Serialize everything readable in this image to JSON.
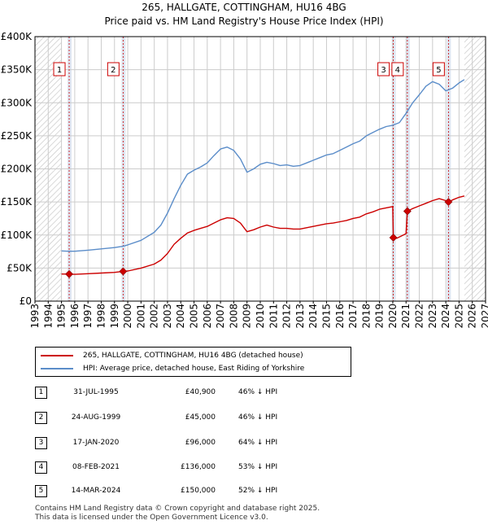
{
  "title_line1": "265, HALLGATE, COTTINGHAM, HU16 4BG",
  "title_line2": "Price paid vs. HM Land Registry's House Price Index (HPI)",
  "chart_data": {
    "type": "line",
    "xlim": [
      1993,
      2027
    ],
    "ylim": [
      0,
      400000
    ],
    "x_ticks": [
      "1993",
      "1994",
      "1995",
      "1996",
      "1997",
      "1998",
      "1999",
      "2000",
      "2001",
      "2002",
      "2003",
      "2004",
      "2005",
      "2006",
      "2007",
      "2008",
      "2009",
      "2010",
      "2011",
      "2012",
      "2013",
      "2014",
      "2015",
      "2016",
      "2017",
      "2018",
      "2019",
      "2020",
      "2021",
      "2022",
      "2023",
      "2024",
      "2025",
      "2026",
      "2027"
    ],
    "y_ticks": [
      {
        "value": 0,
        "label": "£0"
      },
      {
        "value": 50000,
        "label": "£50K"
      },
      {
        "value": 100000,
        "label": "£100K"
      },
      {
        "value": 150000,
        "label": "£150K"
      },
      {
        "value": 200000,
        "label": "£200K"
      },
      {
        "value": 250000,
        "label": "£250K"
      },
      {
        "value": 300000,
        "label": "£300K"
      },
      {
        "value": 350000,
        "label": "£350K"
      },
      {
        "value": 400000,
        "label": "£400K"
      }
    ],
    "data_range": [
      1995.0,
      2025.4
    ],
    "series": [
      {
        "name": "265, HALLGATE, COTTINGHAM, HU16 4BG (detached house)",
        "color": "#cc0000",
        "points": [
          [
            1995.0,
            41000
          ],
          [
            1995.58,
            40900
          ],
          [
            1996.0,
            40500
          ],
          [
            1997.0,
            41500
          ],
          [
            1998.0,
            42500
          ],
          [
            1999.0,
            43500
          ],
          [
            1999.65,
            45000
          ],
          [
            2000.0,
            45500
          ],
          [
            2001.0,
            50000
          ],
          [
            2002.0,
            56000
          ],
          [
            2002.5,
            62000
          ],
          [
            2003.0,
            72000
          ],
          [
            2003.5,
            86000
          ],
          [
            2004.0,
            95000
          ],
          [
            2004.5,
            103000
          ],
          [
            2005.0,
            107000
          ],
          [
            2005.5,
            110000
          ],
          [
            2006.0,
            113000
          ],
          [
            2006.5,
            118000
          ],
          [
            2007.0,
            123000
          ],
          [
            2007.5,
            126000
          ],
          [
            2008.0,
            125000
          ],
          [
            2008.5,
            118000
          ],
          [
            2009.0,
            105000
          ],
          [
            2009.5,
            108000
          ],
          [
            2010.0,
            112000
          ],
          [
            2010.5,
            115000
          ],
          [
            2011.0,
            112000
          ],
          [
            2011.5,
            110000
          ],
          [
            2012.0,
            110000
          ],
          [
            2012.5,
            109000
          ],
          [
            2013.0,
            109000
          ],
          [
            2013.5,
            111000
          ],
          [
            2014.0,
            113000
          ],
          [
            2014.5,
            115000
          ],
          [
            2015.0,
            117000
          ],
          [
            2015.5,
            118000
          ],
          [
            2016.0,
            120000
          ],
          [
            2016.5,
            122000
          ],
          [
            2017.0,
            125000
          ],
          [
            2017.5,
            127000
          ],
          [
            2018.0,
            132000
          ],
          [
            2018.5,
            135000
          ],
          [
            2019.0,
            139000
          ],
          [
            2019.5,
            141000
          ],
          [
            2020.0,
            143000
          ],
          [
            2020.04,
            96000
          ],
          [
            2020.3,
            95000
          ],
          [
            2020.6,
            98000
          ],
          [
            2021.0,
            102000
          ],
          [
            2021.1,
            136000
          ],
          [
            2021.5,
            140000
          ],
          [
            2022.0,
            144000
          ],
          [
            2022.5,
            148000
          ],
          [
            2023.0,
            152000
          ],
          [
            2023.5,
            155000
          ],
          [
            2024.0,
            152000
          ],
          [
            2024.2,
            150000
          ],
          [
            2024.5,
            153000
          ],
          [
            2025.0,
            157000
          ],
          [
            2025.4,
            159000
          ]
        ]
      },
      {
        "name": "HPI: Average price, detached house, East Riding of Yorkshire",
        "color": "#5b8dc9",
        "points": [
          [
            1995.0,
            76000
          ],
          [
            1995.5,
            75500
          ],
          [
            1996.0,
            75500
          ],
          [
            1997.0,
            77000
          ],
          [
            1998.0,
            79000
          ],
          [
            1999.0,
            81000
          ],
          [
            1999.65,
            83000
          ],
          [
            2000.0,
            85000
          ],
          [
            2001.0,
            92000
          ],
          [
            2002.0,
            104000
          ],
          [
            2002.5,
            115000
          ],
          [
            2003.0,
            133000
          ],
          [
            2003.5,
            155000
          ],
          [
            2004.0,
            175000
          ],
          [
            2004.5,
            192000
          ],
          [
            2005.0,
            198000
          ],
          [
            2005.5,
            203000
          ],
          [
            2006.0,
            209000
          ],
          [
            2006.5,
            220000
          ],
          [
            2007.0,
            230000
          ],
          [
            2007.5,
            233000
          ],
          [
            2008.0,
            228000
          ],
          [
            2008.5,
            215000
          ],
          [
            2009.0,
            195000
          ],
          [
            2009.5,
            200000
          ],
          [
            2010.0,
            207000
          ],
          [
            2010.5,
            210000
          ],
          [
            2011.0,
            208000
          ],
          [
            2011.5,
            205000
          ],
          [
            2012.0,
            206000
          ],
          [
            2012.5,
            204000
          ],
          [
            2013.0,
            205000
          ],
          [
            2013.5,
            209000
          ],
          [
            2014.0,
            213000
          ],
          [
            2014.5,
            217000
          ],
          [
            2015.0,
            221000
          ],
          [
            2015.5,
            223000
          ],
          [
            2016.0,
            228000
          ],
          [
            2016.5,
            233000
          ],
          [
            2017.0,
            238000
          ],
          [
            2017.5,
            242000
          ],
          [
            2018.0,
            250000
          ],
          [
            2018.5,
            255000
          ],
          [
            2019.0,
            260000
          ],
          [
            2019.5,
            264000
          ],
          [
            2020.0,
            266000
          ],
          [
            2020.5,
            270000
          ],
          [
            2021.0,
            284000
          ],
          [
            2021.5,
            300000
          ],
          [
            2022.0,
            312000
          ],
          [
            2022.5,
            325000
          ],
          [
            2023.0,
            332000
          ],
          [
            2023.5,
            328000
          ],
          [
            2024.0,
            318000
          ],
          [
            2024.5,
            322000
          ],
          [
            2025.0,
            330000
          ],
          [
            2025.4,
            335000
          ]
        ]
      }
    ],
    "sales": [
      {
        "num": "1",
        "x": 1995.58,
        "price": 40900,
        "date": "31-JUL-1995",
        "price_label": "£40,900",
        "hpi": "46% ↓ HPI"
      },
      {
        "num": "2",
        "x": 1999.65,
        "price": 45000,
        "date": "24-AUG-1999",
        "price_label": "£45,000",
        "hpi": "46% ↓ HPI"
      },
      {
        "num": "3",
        "x": 2020.04,
        "price": 96000,
        "date": "17-JAN-2020",
        "price_label": "£96,000",
        "hpi": "64% ↓ HPI"
      },
      {
        "num": "4",
        "x": 2021.1,
        "price": 136000,
        "date": "08-FEB-2021",
        "price_label": "£136,000",
        "hpi": "53% ↓ HPI"
      },
      {
        "num": "5",
        "x": 2024.2,
        "price": 150000,
        "date": "14-MAR-2024",
        "price_label": "£150,000",
        "hpi": "52% ↓ HPI"
      }
    ],
    "colors": {
      "red": "#cc0000",
      "blue": "#5b8dc9",
      "grid": "#cccccc",
      "band": "#dfe6f2",
      "hatch": "#c8c8c8"
    }
  },
  "legend": {
    "red_label": "265, HALLGATE, COTTINGHAM, HU16 4BG (detached house)",
    "blue_label": "HPI: Average price, detached house, East Riding of Yorkshire"
  },
  "footer": {
    "line1": "Contains HM Land Registry data © Crown copyright and database right 2025.",
    "line2": "This data is licensed under the Open Government Licence v3.0."
  }
}
